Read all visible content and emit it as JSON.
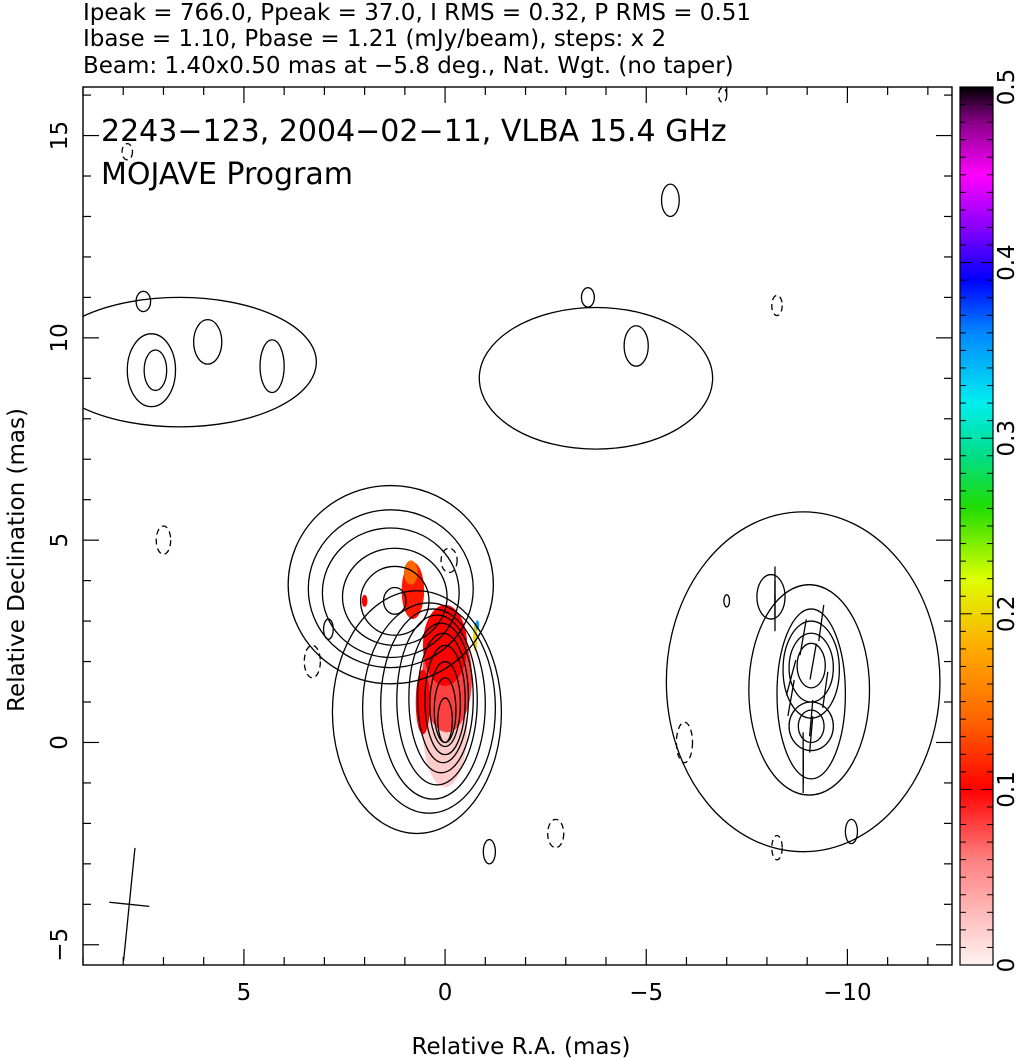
{
  "header": {
    "line1": "Ipeak = 766.0, Ppeak = 37.0, I RMS = 0.32, P RMS = 0.51",
    "line2": "Ibase = 1.10, Pbase = 1.21 (mJy/beam), steps: x 2",
    "line3": "Beam: 1.40x0.50 mas at −5.8 deg., Nat. Wgt. (no taper)"
  },
  "annotations": {
    "source_line": "2243−123, 2004−02−11, VLBA 15.4 GHz",
    "program_line": "MOJAVE Program"
  },
  "chart_data": {
    "type": "heatmap",
    "xlabel": "Relative R.A. (mas)",
    "ylabel": "Relative Declination (mas)",
    "xlim": [
      9.0,
      -12.6
    ],
    "ylim": [
      -5.5,
      16.2
    ],
    "x_ticks": [
      5,
      0,
      -5,
      -10
    ],
    "x_tick_labels": [
      "5",
      "0",
      "−5",
      "−10"
    ],
    "y_ticks": [
      -5,
      0,
      5,
      10,
      15
    ],
    "y_tick_labels": [
      "−5",
      "0",
      "5",
      "10",
      "15"
    ],
    "colorbar": {
      "min": 0,
      "max": 0.5,
      "ticks": [
        0,
        0.1,
        0.2,
        0.3,
        0.4,
        0.5
      ],
      "tick_labels": [
        "0",
        "0.1",
        "0.2",
        "0.3",
        "0.4",
        "0.5"
      ]
    },
    "contours": [
      {
        "name": "core",
        "x": 0.0,
        "y": 0.25,
        "levels": [
          {
            "rx": 2.1,
            "ry": 3.0,
            "dx": 0.7,
            "dy": 0.5,
            "dashed": false
          },
          {
            "rx": 1.65,
            "ry": 2.6,
            "dx": 0.4,
            "dy": 0.6,
            "dashed": false
          },
          {
            "rx": 1.3,
            "ry": 2.35,
            "dx": 0.3,
            "dy": 0.7,
            "dashed": false
          },
          {
            "rx": 1.0,
            "ry": 2.1,
            "dx": 0.2,
            "dy": 0.8,
            "dashed": false
          },
          {
            "rx": 0.8,
            "ry": 1.85,
            "dx": 0.1,
            "dy": 0.85,
            "dashed": false
          },
          {
            "rx": 0.63,
            "ry": 1.6,
            "dx": 0.05,
            "dy": 0.85,
            "dashed": false
          },
          {
            "rx": 0.5,
            "ry": 1.35,
            "dx": 0.0,
            "dy": 0.8,
            "dashed": false
          },
          {
            "rx": 0.38,
            "ry": 1.05,
            "dx": 0.0,
            "dy": 0.7,
            "dashed": false
          },
          {
            "rx": 0.27,
            "ry": 0.8,
            "dx": 0.0,
            "dy": 0.55,
            "dashed": false
          },
          {
            "rx": 0.18,
            "ry": 0.55,
            "dx": 0.0,
            "dy": 0.3,
            "dashed": false
          }
        ]
      },
      {
        "name": "northeast-knot",
        "x": 1.25,
        "y": 3.5,
        "levels": [
          {
            "rx": 2.55,
            "ry": 2.45,
            "dx": 0.1,
            "dy": 0.4,
            "dashed": false
          },
          {
            "rx": 2.05,
            "ry": 1.95,
            "dx": 0.1,
            "dy": 0.3,
            "dashed": false
          },
          {
            "rx": 1.7,
            "ry": 1.6,
            "dx": 0.1,
            "dy": 0.2,
            "dashed": false
          },
          {
            "rx": 1.3,
            "ry": 1.2,
            "dx": 0.0,
            "dy": 0.1,
            "dashed": false
          },
          {
            "rx": 0.85,
            "ry": 0.85,
            "dx": 0.0,
            "dy": 0.0,
            "dashed": false
          },
          {
            "rx": 0.28,
            "ry": 0.33,
            "dx": 0.0,
            "dy": 0.0,
            "dashed": false
          }
        ]
      },
      {
        "name": "west-component",
        "x": -9.1,
        "y": 1.3,
        "levels": [
          {
            "rx": 3.4,
            "ry": 4.2,
            "dx": 0.2,
            "dy": 0.2,
            "dashed": false
          },
          {
            "rx": 1.5,
            "ry": 2.6,
            "dx": 0.05,
            "dy": 0.0,
            "dashed": false
          },
          {
            "rx": 0.85,
            "ry": 2.1,
            "dx": 0.0,
            "dy": -0.1,
            "dashed": false
          },
          {
            "rx": 0.7,
            "ry": 1.2,
            "dx": 0.0,
            "dy": 0.5,
            "dashed": false
          },
          {
            "rx": 0.55,
            "ry": 0.85,
            "dx": 0.0,
            "dy": 0.55,
            "dashed": false
          },
          {
            "rx": 0.35,
            "ry": 0.55,
            "dx": 0.0,
            "dy": 0.6,
            "dashed": false
          },
          {
            "rx": 0.55,
            "ry": 0.6,
            "dx": 0.0,
            "dy": -0.9,
            "dashed": false
          },
          {
            "rx": 0.32,
            "ry": 0.4,
            "dx": 0.0,
            "dy": -0.9,
            "dashed": false
          },
          {
            "rx": 0.35,
            "ry": 0.55,
            "dx": 1.0,
            "dy": 2.3,
            "dashed": false
          }
        ]
      },
      {
        "name": "north-east-blob",
        "x": 6.6,
        "y": 9.4,
        "levels": [
          {
            "rx": 3.4,
            "ry": 1.6,
            "dx": 0.0,
            "dy": 0.0,
            "dashed": false
          },
          {
            "rx": 0.6,
            "ry": 0.9,
            "dx": 0.7,
            "dy": -0.2,
            "dashed": false
          },
          {
            "rx": 0.28,
            "ry": 0.5,
            "dx": 0.6,
            "dy": -0.2,
            "dashed": false
          },
          {
            "rx": 0.35,
            "ry": 0.55,
            "dx": -0.7,
            "dy": 0.5,
            "dashed": false
          },
          {
            "rx": 0.3,
            "ry": 0.65,
            "dx": -2.3,
            "dy": -0.1,
            "dashed": false
          },
          {
            "rx": 0.18,
            "ry": 0.25,
            "dx": 0.9,
            "dy": 1.5,
            "dashed": false
          }
        ]
      },
      {
        "name": "north-west-blob",
        "x": -3.75,
        "y": 9.0,
        "levels": [
          {
            "rx": 2.9,
            "ry": 1.75,
            "dx": 0.0,
            "dy": 0.0,
            "dashed": false
          },
          {
            "rx": 0.3,
            "ry": 0.5,
            "dx": -1.0,
            "dy": 0.8,
            "dashed": false
          },
          {
            "rx": 0.16,
            "ry": 0.24,
            "dx": 0.2,
            "dy": 2.0,
            "dashed": false
          }
        ]
      },
      {
        "name": "island-a",
        "x": -1.1,
        "y": -2.7,
        "levels": [
          {
            "rx": 0.15,
            "ry": 0.3,
            "dx": 0,
            "dy": 0,
            "dashed": false
          }
        ]
      },
      {
        "name": "island-b",
        "x": -10.1,
        "y": -2.2,
        "levels": [
          {
            "rx": 0.15,
            "ry": 0.3,
            "dx": 0,
            "dy": 0,
            "dashed": false
          }
        ]
      },
      {
        "name": "island-c",
        "x": -7.0,
        "y": 3.5,
        "levels": [
          {
            "rx": 0.07,
            "ry": 0.15,
            "dx": 0,
            "dy": 0,
            "dashed": false
          }
        ]
      },
      {
        "name": "island-d",
        "x": -5.6,
        "y": 13.4,
        "levels": [
          {
            "rx": 0.22,
            "ry": 0.4,
            "dx": 0,
            "dy": 0,
            "dashed": false
          }
        ]
      },
      {
        "name": "island-e",
        "x": 2.9,
        "y": 2.8,
        "levels": [
          {
            "rx": 0.12,
            "ry": 0.25,
            "dx": 0,
            "dy": 0,
            "dashed": false
          }
        ]
      },
      {
        "name": "neg-1",
        "x": 7.0,
        "y": 5.0,
        "levels": [
          {
            "rx": 0.18,
            "ry": 0.35,
            "dx": 0,
            "dy": 0,
            "dashed": true
          }
        ]
      },
      {
        "name": "neg-2",
        "x": 3.3,
        "y": 2.0,
        "levels": [
          {
            "rx": 0.2,
            "ry": 0.4,
            "dx": 0,
            "dy": 0,
            "dashed": true
          }
        ]
      },
      {
        "name": "neg-3",
        "x": -0.1,
        "y": 4.5,
        "levels": [
          {
            "rx": 0.2,
            "ry": 0.3,
            "dx": 0,
            "dy": 0,
            "dashed": true
          }
        ]
      },
      {
        "name": "neg-4",
        "x": -2.75,
        "y": -2.25,
        "levels": [
          {
            "rx": 0.2,
            "ry": 0.35,
            "dx": 0,
            "dy": 0,
            "dashed": true
          }
        ]
      },
      {
        "name": "neg-5",
        "x": -5.95,
        "y": 0.0,
        "levels": [
          {
            "rx": 0.2,
            "ry": 0.5,
            "dx": 0,
            "dy": 0,
            "dashed": true
          }
        ]
      },
      {
        "name": "neg-6",
        "x": -8.25,
        "y": 10.8,
        "levels": [
          {
            "rx": 0.13,
            "ry": 0.25,
            "dx": 0,
            "dy": 0,
            "dashed": true
          }
        ]
      },
      {
        "name": "neg-7",
        "x": -8.25,
        "y": -2.6,
        "levels": [
          {
            "rx": 0.13,
            "ry": 0.3,
            "dx": 0,
            "dy": 0,
            "dashed": true
          }
        ]
      },
      {
        "name": "neg-8",
        "x": 7.9,
        "y": 14.6,
        "levels": [
          {
            "rx": 0.13,
            "ry": 0.2,
            "dx": 0,
            "dy": 0,
            "dashed": true
          }
        ]
      },
      {
        "name": "neg-9",
        "x": -6.9,
        "y": 16.0,
        "levels": [
          {
            "rx": 0.1,
            "ry": 0.18,
            "dx": 0,
            "dy": 0,
            "dashed": true
          }
        ]
      }
    ],
    "fractional_polarization": [
      {
        "x": 0.0,
        "y": 0.3,
        "rx": 0.55,
        "ry": 1.4,
        "value": 0.02
      },
      {
        "x": -0.05,
        "y": 1.6,
        "rx": 0.62,
        "ry": 1.35,
        "value": 0.08
      },
      {
        "x": 0.0,
        "y": 2.4,
        "rx": 0.55,
        "ry": 1.0,
        "value": 0.1
      },
      {
        "x": 0.55,
        "y": 1.0,
        "rx": 0.18,
        "ry": 0.8,
        "value": 0.1
      },
      {
        "x": 0.8,
        "y": 3.75,
        "rx": 0.28,
        "ry": 0.7,
        "value": 0.11
      },
      {
        "x": 0.85,
        "y": 4.2,
        "rx": 0.17,
        "ry": 0.3,
        "value": 0.14
      },
      {
        "x": 2.0,
        "y": 3.5,
        "rx": 0.07,
        "ry": 0.15,
        "value": 0.1
      },
      {
        "x": -0.75,
        "y": 2.6,
        "rx": 0.05,
        "ry": 0.35,
        "value": 0.2
      },
      {
        "x": -0.8,
        "y": 2.9,
        "rx": 0.05,
        "ry": 0.12,
        "value": 0.35
      }
    ],
    "evpa_ticks": [
      {
        "x": -8.2,
        "y": 3.9,
        "angle": 0
      },
      {
        "x": -8.2,
        "y": 3.55,
        "angle": 0
      },
      {
        "x": -8.2,
        "y": 3.2,
        "angle": 0
      },
      {
        "x": -8.9,
        "y": 2.6,
        "angle": -10
      },
      {
        "x": -9.15,
        "y": 2.0,
        "angle": -10
      },
      {
        "x": -9.35,
        "y": 2.95,
        "angle": -8
      },
      {
        "x": -8.6,
        "y": 1.6,
        "angle": -15
      },
      {
        "x": -8.6,
        "y": 1.1,
        "angle": -10
      },
      {
        "x": -9.45,
        "y": 1.3,
        "angle": -8
      },
      {
        "x": -9.1,
        "y": 0.6,
        "angle": -5
      },
      {
        "x": -9.1,
        "y": 0.2,
        "angle": -5
      },
      {
        "x": -8.9,
        "y": -0.2,
        "angle": 0
      },
      {
        "x": -8.9,
        "y": -0.6,
        "angle": 0
      },
      {
        "x": -8.9,
        "y": -0.8,
        "angle": 0
      }
    ],
    "beam": {
      "x": 7.85,
      "y": -4.0,
      "major": 1.4,
      "minor": 0.5,
      "pa": -5.8
    }
  },
  "colors": {
    "contour": "#000000",
    "axis": "#000000",
    "background": "#ffffff"
  }
}
